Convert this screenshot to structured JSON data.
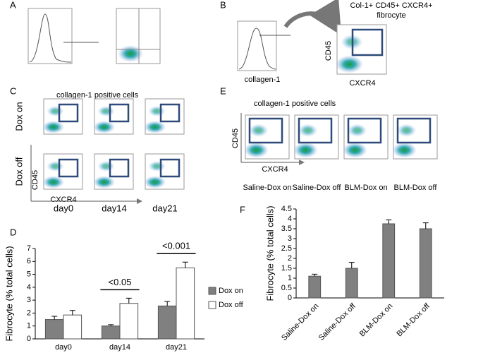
{
  "panel_labels": [
    "A",
    "B",
    "C",
    "D",
    "E",
    "F"
  ],
  "panel_b": {
    "title_1": "Col-1+ CD45+ CXCR4+",
    "title_2": "fibrocyte",
    "hist_x": "collagen-1",
    "y_axis": "CD45",
    "x_axis": "CXCR4"
  },
  "panel_c": {
    "title": "collagen-1  positive cells",
    "rows": [
      "Dox on",
      "Dox off"
    ],
    "y_axis": "CD45",
    "x_axis": "CXCR4",
    "columns": [
      "day0",
      "day14",
      "day21"
    ]
  },
  "panel_e": {
    "title": "collagen-1  positive cells",
    "y_axis": "CD45",
    "x_axis": "CXCR4",
    "columns": [
      "Saline-Dox on",
      "Saline-Dox off",
      "BLM-Dox on",
      "BLM-Dox off"
    ]
  },
  "chart_data": [
    {
      "type": "bar",
      "ylabel": "Fibrocyte (% total cells)",
      "categories": [
        "day0",
        "day14",
        "day21"
      ],
      "series": [
        {
          "name": "Dox on",
          "color": "#808080",
          "values": [
            1.5,
            1.0,
            2.55
          ],
          "errors": [
            0.25,
            0.1,
            0.35
          ]
        },
        {
          "name": "Dox off",
          "color": "#ffffff",
          "values": [
            1.85,
            2.75,
            5.5
          ],
          "errors": [
            0.35,
            0.4,
            0.45
          ]
        }
      ],
      "ylim": [
        0,
        7
      ],
      "yticks": [
        0,
        1,
        2,
        3,
        4,
        5,
        6,
        7
      ],
      "legend": "right",
      "annotations": [
        {
          "text": "<0.05",
          "category": "day14"
        },
        {
          "text": "<0.001",
          "category": "day21"
        }
      ]
    },
    {
      "type": "bar",
      "ylabel": "Fibrocyte (% total cells)",
      "categories": [
        "Saline-Dox on",
        "Saline-Dox off",
        "BLM-Dox on",
        "BLM-Dox off"
      ],
      "values": [
        1.1,
        1.5,
        3.75,
        3.5
      ],
      "errors": [
        0.1,
        0.3,
        0.2,
        0.3
      ],
      "color": "#808080",
      "ylim": [
        0,
        4.5
      ],
      "yticks": [
        0,
        0.5,
        1,
        1.5,
        2,
        2.5,
        3,
        3.5,
        4,
        4.5
      ]
    }
  ]
}
